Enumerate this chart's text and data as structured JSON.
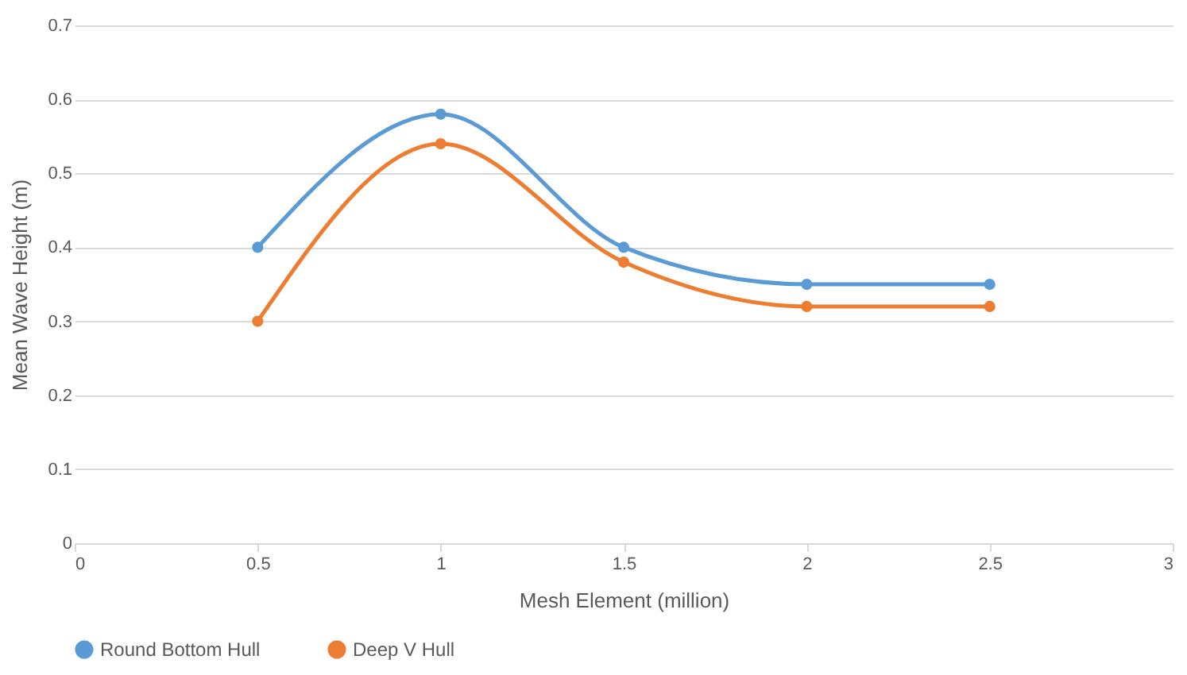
{
  "chart_data": {
    "type": "line",
    "xlabel": "Mesh Element (million)",
    "ylabel": "Mean Wave Height (m)",
    "x": [
      0.5,
      1,
      1.5,
      2,
      2.5
    ],
    "series": [
      {
        "name": "Round Bottom Hull",
        "color": "#5b9bd5",
        "values": [
          0.4,
          0.58,
          0.4,
          0.35,
          0.35
        ]
      },
      {
        "name": "Deep V Hull",
        "color": "#ed7d31",
        "values": [
          0.3,
          0.54,
          0.38,
          0.32,
          0.32
        ]
      }
    ],
    "xlim": [
      0,
      3
    ],
    "xticks": [
      0,
      0.5,
      1,
      1.5,
      2,
      2.5,
      3
    ],
    "ylim": [
      0,
      0.7
    ],
    "yticks": [
      0,
      0.1,
      0.2,
      0.3,
      0.4,
      0.5,
      0.6,
      0.7
    ],
    "grid": "y",
    "legend": "bottom",
    "marker": "circle",
    "line_style": "solid"
  }
}
